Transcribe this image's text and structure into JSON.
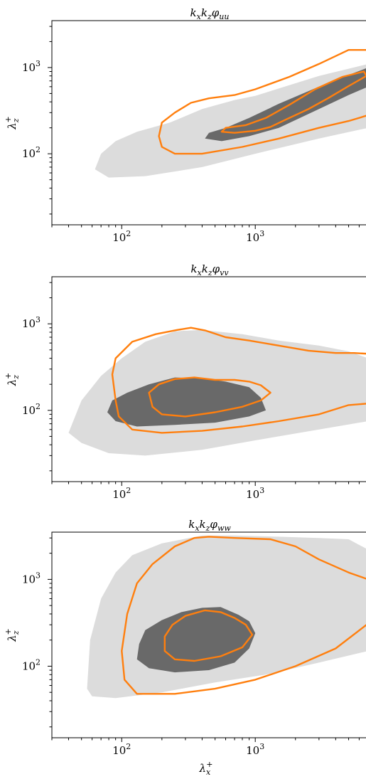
{
  "chart_data": [
    {
      "type": "contour",
      "title": "k_x k_z φ_uu",
      "xlabel": "",
      "ylabel": "λ_z^+",
      "xscale": "log",
      "yscale": "log",
      "xlim": [
        30,
        7000
      ],
      "ylim": [
        15,
        3500
      ],
      "x_ticks": [
        {
          "value": 100,
          "label": "10",
          "exp": "2"
        },
        {
          "value": 1000,
          "label": "10",
          "exp": "3"
        }
      ],
      "y_ticks": [
        {
          "value": 100,
          "label": "10",
          "exp": "2"
        },
        {
          "value": 1000,
          "label": "10",
          "exp": "3"
        }
      ],
      "colors": {
        "outer_fill": "#dcdcdc",
        "inner_fill": "#696969",
        "contour": "#ff7f0e"
      },
      "regions": [
        {
          "kind": "fill-light",
          "points": [
            [
              63,
              66
            ],
            [
              80,
              53
            ],
            [
              150,
              55
            ],
            [
              400,
              70
            ],
            [
              1000,
              100
            ],
            [
              3000,
              150
            ],
            [
              7000,
              200
            ],
            [
              7000,
              1100
            ],
            [
              3000,
              800
            ],
            [
              1000,
              470
            ],
            [
              700,
              420
            ],
            [
              400,
              330
            ],
            [
              230,
              230
            ],
            [
              130,
              180
            ],
            [
              90,
              140
            ],
            [
              70,
              100
            ]
          ]
        },
        {
          "kind": "fill-dark",
          "points": [
            [
              420,
              150
            ],
            [
              560,
              140
            ],
            [
              900,
              160
            ],
            [
              1500,
              200
            ],
            [
              3000,
              330
            ],
            [
              5000,
              480
            ],
            [
              7000,
              600
            ],
            [
              7000,
              1000
            ],
            [
              5000,
              820
            ],
            [
              3000,
              600
            ],
            [
              1500,
              380
            ],
            [
              900,
              260
            ],
            [
              600,
              200
            ],
            [
              450,
              175
            ]
          ]
        },
        {
          "kind": "line",
          "closed": false,
          "points": [
            [
              7000,
              1600
            ],
            [
              5000,
              1600
            ],
            [
              3000,
              1100
            ],
            [
              1800,
              780
            ],
            [
              1000,
              560
            ],
            [
              700,
              480
            ],
            [
              450,
              440
            ],
            [
              330,
              390
            ],
            [
              250,
              300
            ],
            [
              200,
              230
            ],
            [
              190,
              160
            ],
            [
              200,
              120
            ],
            [
              250,
              100
            ],
            [
              400,
              100
            ],
            [
              800,
              120
            ],
            [
              1500,
              150
            ],
            [
              3000,
              200
            ],
            [
              5000,
              240
            ],
            [
              7000,
              280
            ]
          ]
        },
        {
          "kind": "line",
          "closed": true,
          "points": [
            [
              560,
              180
            ],
            [
              700,
              175
            ],
            [
              1000,
              185
            ],
            [
              1300,
              205
            ],
            [
              1700,
              250
            ],
            [
              2500,
              330
            ],
            [
              3500,
              440
            ],
            [
              5000,
              610
            ],
            [
              6800,
              800
            ],
            [
              6500,
              900
            ],
            [
              4500,
              780
            ],
            [
              2800,
              560
            ],
            [
              1800,
              370
            ],
            [
              1200,
              260
            ],
            [
              850,
              215
            ],
            [
              600,
              200
            ]
          ]
        }
      ]
    },
    {
      "type": "contour",
      "title": "k_x k_z φ_vv",
      "xlabel": "",
      "ylabel": "λ_z^+",
      "xscale": "log",
      "yscale": "log",
      "xlim": [
        30,
        7000
      ],
      "ylim": [
        15,
        3500
      ],
      "x_ticks": [
        {
          "value": 100,
          "label": "10",
          "exp": "2"
        },
        {
          "value": 1000,
          "label": "10",
          "exp": "3"
        }
      ],
      "y_ticks": [
        {
          "value": 100,
          "label": "10",
          "exp": "2"
        },
        {
          "value": 1000,
          "label": "10",
          "exp": "3"
        }
      ],
      "colors": {
        "outer_fill": "#dcdcdc",
        "inner_fill": "#696969",
        "contour": "#ff7f0e"
      },
      "regions": [
        {
          "kind": "fill-light",
          "points": [
            [
              40,
              55
            ],
            [
              50,
              42
            ],
            [
              80,
              32
            ],
            [
              150,
              30
            ],
            [
              400,
              35
            ],
            [
              1000,
              45
            ],
            [
              3000,
              60
            ],
            [
              7000,
              75
            ],
            [
              7000,
              400
            ],
            [
              5000,
              480
            ],
            [
              3000,
              560
            ],
            [
              1500,
              640
            ],
            [
              800,
              760
            ],
            [
              400,
              850
            ],
            [
              250,
              820
            ],
            [
              150,
              620
            ],
            [
              100,
              400
            ],
            [
              70,
              250
            ],
            [
              50,
              130
            ]
          ]
        },
        {
          "kind": "fill-dark",
          "points": [
            [
              78,
              95
            ],
            [
              90,
              75
            ],
            [
              130,
              65
            ],
            [
              250,
              68
            ],
            [
              500,
              72
            ],
            [
              900,
              85
            ],
            [
              1200,
              100
            ],
            [
              1100,
              140
            ],
            [
              900,
              185
            ],
            [
              600,
              215
            ],
            [
              400,
              235
            ],
            [
              250,
              240
            ],
            [
              160,
              200
            ],
            [
              110,
              160
            ],
            [
              85,
              130
            ]
          ]
        },
        {
          "kind": "line",
          "closed": false,
          "points": [
            [
              7000,
              450
            ],
            [
              5500,
              460
            ],
            [
              4000,
              460
            ],
            [
              2500,
              490
            ],
            [
              1500,
              560
            ],
            [
              900,
              640
            ],
            [
              600,
              700
            ],
            [
              420,
              840
            ],
            [
              330,
              900
            ],
            [
              260,
              850
            ],
            [
              180,
              760
            ],
            [
              120,
              620
            ],
            [
              90,
              400
            ],
            [
              85,
              260
            ],
            [
              90,
              130
            ],
            [
              95,
              85
            ],
            [
              120,
              60
            ],
            [
              200,
              55
            ],
            [
              400,
              58
            ],
            [
              800,
              65
            ],
            [
              1500,
              75
            ],
            [
              3000,
              90
            ],
            [
              5000,
              115
            ],
            [
              7000,
              120
            ]
          ]
        },
        {
          "kind": "line",
          "closed": true,
          "points": [
            [
              170,
              110
            ],
            [
              200,
              90
            ],
            [
              300,
              85
            ],
            [
              500,
              95
            ],
            [
              800,
              110
            ],
            [
              1100,
              130
            ],
            [
              1300,
              160
            ],
            [
              1100,
              195
            ],
            [
              900,
              215
            ],
            [
              700,
              225
            ],
            [
              500,
              225
            ],
            [
              350,
              240
            ],
            [
              250,
              230
            ],
            [
              190,
              200
            ],
            [
              160,
              160
            ]
          ]
        }
      ]
    },
    {
      "type": "contour",
      "title": "k_x k_z φ_ww",
      "xlabel": "λ_x^+",
      "ylabel": "λ_z^+",
      "xscale": "log",
      "yscale": "log",
      "xlim": [
        30,
        7000
      ],
      "ylim": [
        15,
        3500
      ],
      "x_ticks": [
        {
          "value": 100,
          "label": "10",
          "exp": "2"
        },
        {
          "value": 1000,
          "label": "10",
          "exp": "3"
        }
      ],
      "y_ticks": [
        {
          "value": 100,
          "label": "10",
          "exp": "2"
        },
        {
          "value": 1000,
          "label": "10",
          "exp": "3"
        }
      ],
      "colors": {
        "outer_fill": "#dcdcdc",
        "inner_fill": "#696969",
        "contour": "#ff7f0e"
      },
      "regions": [
        {
          "kind": "fill-light",
          "points": [
            [
              55,
              55
            ],
            [
              60,
              45
            ],
            [
              90,
              43
            ],
            [
              200,
              50
            ],
            [
              500,
              65
            ],
            [
              1200,
              80
            ],
            [
              3000,
              110
            ],
            [
              7000,
              150
            ],
            [
              7000,
              2200
            ],
            [
              5000,
              2900
            ],
            [
              3000,
              3000
            ],
            [
              1500,
              3100
            ],
            [
              700,
              3200
            ],
            [
              400,
              3200
            ],
            [
              200,
              2600
            ],
            [
              120,
              1900
            ],
            [
              90,
              1200
            ],
            [
              70,
              600
            ],
            [
              58,
              200
            ]
          ]
        },
        {
          "kind": "fill-dark",
          "points": [
            [
              130,
              120
            ],
            [
              160,
              95
            ],
            [
              250,
              85
            ],
            [
              450,
              90
            ],
            [
              700,
              110
            ],
            [
              900,
              160
            ],
            [
              1000,
              240
            ],
            [
              900,
              330
            ],
            [
              750,
              390
            ],
            [
              550,
              480
            ],
            [
              400,
              470
            ],
            [
              280,
              420
            ],
            [
              200,
              340
            ],
            [
              150,
              260
            ],
            [
              135,
              180
            ]
          ]
        },
        {
          "kind": "line",
          "closed": false,
          "points": [
            [
              7000,
              1000
            ],
            [
              5000,
              1200
            ],
            [
              3000,
              1700
            ],
            [
              2000,
              2400
            ],
            [
              1300,
              2900
            ],
            [
              700,
              3000
            ],
            [
              450,
              3100
            ],
            [
              350,
              3000
            ],
            [
              250,
              2400
            ],
            [
              170,
              1500
            ],
            [
              130,
              900
            ],
            [
              110,
              400
            ],
            [
              100,
              150
            ],
            [
              105,
              70
            ],
            [
              130,
              48
            ],
            [
              250,
              48
            ],
            [
              500,
              55
            ],
            [
              1000,
              70
            ],
            [
              2000,
              100
            ],
            [
              4000,
              160
            ],
            [
              7000,
              310
            ]
          ]
        },
        {
          "kind": "line",
          "closed": true,
          "points": [
            [
              210,
              150
            ],
            [
              250,
              120
            ],
            [
              350,
              115
            ],
            [
              550,
              130
            ],
            [
              800,
              165
            ],
            [
              950,
              230
            ],
            [
              850,
              300
            ],
            [
              700,
              360
            ],
            [
              550,
              420
            ],
            [
              420,
              440
            ],
            [
              300,
              380
            ],
            [
              240,
              300
            ],
            [
              210,
              220
            ]
          ]
        }
      ]
    }
  ]
}
